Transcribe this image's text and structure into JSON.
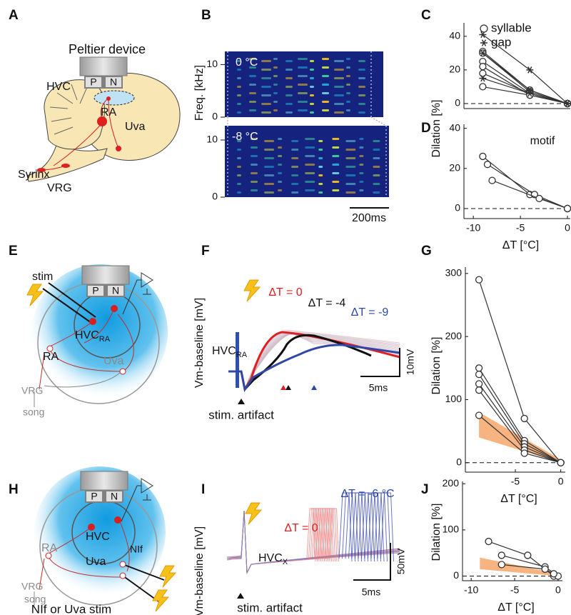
{
  "figure": {
    "A": {
      "label": "A",
      "device": "Peltier device",
      "p": "P",
      "n": "N",
      "hvc": "HVC",
      "ra": "RA",
      "uva": "Uva",
      "syrinx": "Syrinx",
      "vrg": "VRG"
    },
    "B": {
      "label": "B",
      "ylabel": "Freq. [kHz]",
      "top_temp": "0 °C",
      "bottom_temp": "-8 °C",
      "scale": "200ms",
      "ylim": [
        0,
        12.5
      ],
      "top_yticks": [
        0,
        10
      ],
      "bottom_yticks": [
        0,
        10
      ]
    },
    "E": {
      "label": "E",
      "stim": "stim",
      "p": "P",
      "n": "N",
      "hvc": "HVC",
      "hvc_sub": "RA",
      "ra": "RA",
      "uva": "Uva",
      "vrg": "VRG",
      "song": "song"
    },
    "F": {
      "label": "F",
      "ylabel": "Vm-baseline [mV]",
      "dt0": "ΔT = 0",
      "dt4": "ΔT = -4",
      "dt9": "ΔT = -9",
      "cell": "HVC",
      "cell_sub": "RA",
      "artifact": "stim. artifact",
      "vscale": "10mV",
      "hscale": "5ms"
    },
    "H": {
      "label": "H",
      "p": "P",
      "n": "N",
      "hvc": "HVC",
      "ra": "RA",
      "uva": "Uva",
      "nif": "NIf",
      "vrg": "VRG",
      "song": "song",
      "caption": "NIf or Uva stim"
    },
    "I": {
      "label": "I",
      "ylabel": "Vm-baseline [mV]",
      "dt0": "ΔT = 0",
      "dt6": "ΔT = -6 °C",
      "cell": "HVC",
      "cell_sub": "X",
      "artifact": "stim. artifact",
      "vscale": "50mV",
      "hscale": "5ms"
    }
  },
  "chart_data": [
    {
      "type": "line",
      "label": "C",
      "color": "#333333",
      "zero_line": true,
      "legend": [
        {
          "marker": "circle",
          "text": "syllable"
        },
        {
          "marker": "star",
          "text": "gap"
        }
      ],
      "xlim": [
        -11,
        0.3
      ],
      "ylim": [
        -3,
        48
      ],
      "yticks": [
        0,
        20,
        40
      ],
      "series": [
        {
          "marker": "circle",
          "x": [
            -9,
            -4,
            0
          ],
          "values": [
            31,
            8,
            0
          ]
        },
        {
          "marker": "circle",
          "x": [
            -9,
            -4,
            0
          ],
          "values": [
            30,
            7,
            0
          ]
        },
        {
          "marker": "circle",
          "x": [
            -9,
            -4,
            0
          ],
          "values": [
            25,
            6,
            0
          ]
        },
        {
          "marker": "circle",
          "x": [
            -9,
            -4,
            0
          ],
          "values": [
            22,
            5,
            0
          ]
        },
        {
          "marker": "circle",
          "x": [
            -9,
            -4,
            0
          ],
          "values": [
            18,
            6,
            0
          ]
        },
        {
          "marker": "circle",
          "x": [
            -9,
            -4,
            0
          ],
          "values": [
            10,
            5,
            0
          ]
        },
        {
          "marker": "star",
          "x": [
            -9,
            -4,
            0
          ],
          "values": [
            41,
            20,
            0
          ]
        },
        {
          "marker": "star",
          "x": [
            -9,
            -4,
            0
          ],
          "values": [
            30,
            8,
            0
          ]
        },
        {
          "marker": "star",
          "x": [
            -9,
            -4,
            0
          ],
          "values": [
            15,
            6,
            0
          ]
        }
      ]
    },
    {
      "type": "line",
      "label": "D",
      "color": "#333333",
      "zero_line": true,
      "annotation": "motif",
      "ylabel": "Dilation [%]",
      "xlabel": "ΔT [°C]",
      "xlim": [
        -11,
        0.3
      ],
      "ylim": [
        -5,
        42
      ],
      "xticks": [
        -10,
        -5,
        0
      ],
      "yticks": [
        0,
        20,
        40
      ],
      "series": [
        {
          "marker": "circle",
          "x": [
            -9,
            -4,
            0
          ],
          "values": [
            26,
            7,
            0
          ]
        },
        {
          "marker": "circle",
          "x": [
            -8.5,
            -3.5,
            0
          ],
          "values": [
            22,
            7,
            0
          ]
        },
        {
          "marker": "circle",
          "x": [
            -8,
            -3,
            0
          ],
          "values": [
            14,
            5,
            0
          ]
        }
      ]
    },
    {
      "type": "line",
      "label": "G",
      "color": "#333333",
      "zero_line": true,
      "ylabel": "Dilation [%]",
      "xlabel": "ΔT [°C]",
      "xlim": [
        -10.5,
        0.5
      ],
      "ylim": [
        -15,
        310
      ],
      "xticks": [
        -5,
        0
      ],
      "yticks": [
        0,
        100,
        200,
        300
      ],
      "band": {
        "color": "#f28a3c",
        "x": [
          -9,
          0
        ],
        "low": [
          40,
          0
        ],
        "high": [
          80,
          5
        ]
      },
      "series": [
        {
          "marker": "circle",
          "x": [
            -9,
            -4,
            0
          ],
          "values": [
            290,
            70,
            0
          ]
        },
        {
          "marker": "circle",
          "x": [
            -9,
            -4,
            0
          ],
          "values": [
            150,
            35,
            0
          ]
        },
        {
          "marker": "circle",
          "x": [
            -9,
            -4,
            0
          ],
          "values": [
            140,
            30,
            0
          ]
        },
        {
          "marker": "circle",
          "x": [
            -9,
            -4,
            0
          ],
          "values": [
            125,
            25,
            0
          ]
        },
        {
          "marker": "circle",
          "x": [
            -9,
            -4,
            0
          ],
          "values": [
            115,
            20,
            0
          ]
        },
        {
          "marker": "circle",
          "x": [
            -9,
            -4,
            0
          ],
          "values": [
            75,
            15,
            0
          ]
        }
      ]
    },
    {
      "type": "line",
      "label": "J",
      "color": "#333333",
      "zero_line": true,
      "ylabel": "Dilation [%]",
      "xlabel": "ΔT [°C]",
      "xlim": [
        -11,
        0.5
      ],
      "ylim": [
        -10,
        205
      ],
      "xticks": [
        -10,
        -5,
        0
      ],
      "yticks": [
        0,
        100,
        200
      ],
      "band": {
        "color": "#f28a3c",
        "x": [
          -9,
          0
        ],
        "low": [
          15,
          0
        ],
        "high": [
          40,
          5
        ]
      },
      "series": [
        {
          "marker": "circle",
          "x": [
            -8,
            -3.5,
            -0.5
          ],
          "values": [
            75,
            45,
            0
          ]
        },
        {
          "marker": "circle",
          "x": [
            -6.5,
            -1.5,
            0
          ],
          "values": [
            45,
            20,
            0
          ]
        },
        {
          "marker": "circle",
          "x": [
            -6.5,
            -1.5,
            -0.5
          ],
          "values": [
            25,
            15,
            5
          ]
        }
      ]
    }
  ]
}
